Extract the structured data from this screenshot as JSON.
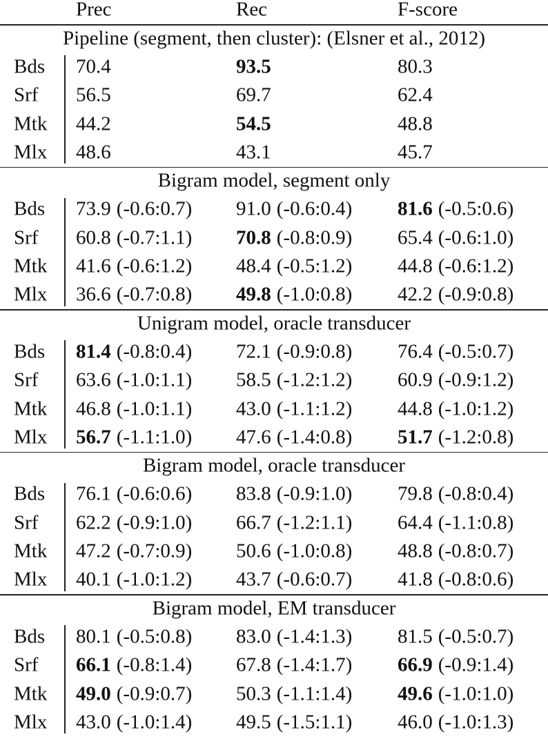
{
  "header": {
    "columns": [
      "Prec",
      "Rec",
      "F-score"
    ]
  },
  "sections": [
    {
      "title": "Pipeline (segment, then cluster): (Elsner et al., 2012)",
      "rows": [
        {
          "label": "Bds",
          "cells": [
            {
              "value": "70.4"
            },
            {
              "value": "93.5",
              "bold": true
            },
            {
              "value": "80.3"
            }
          ]
        },
        {
          "label": "Srf",
          "cells": [
            {
              "value": "56.5"
            },
            {
              "value": "69.7"
            },
            {
              "value": "62.4"
            }
          ]
        },
        {
          "label": "Mtk",
          "cells": [
            {
              "value": "44.2"
            },
            {
              "value": "54.5",
              "bold": true
            },
            {
              "value": "48.8"
            }
          ]
        },
        {
          "label": "Mlx",
          "cells": [
            {
              "value": "48.6"
            },
            {
              "value": "43.1"
            },
            {
              "value": "45.7"
            }
          ]
        }
      ]
    },
    {
      "title": "Bigram model, segment only",
      "rows": [
        {
          "label": "Bds",
          "cells": [
            {
              "value": "73.9",
              "range": "(-0.6:0.7)"
            },
            {
              "value": "91.0",
              "range": "(-0.6:0.4)"
            },
            {
              "value": "81.6",
              "range": "(-0.5:0.6)",
              "bold": true
            }
          ]
        },
        {
          "label": "Srf",
          "cells": [
            {
              "value": "60.8",
              "range": "(-0.7:1.1)"
            },
            {
              "value": "70.8",
              "range": "(-0.8:0.9)",
              "bold": true
            },
            {
              "value": "65.4",
              "range": "(-0.6:1.0)"
            }
          ]
        },
        {
          "label": "Mtk",
          "cells": [
            {
              "value": "41.6",
              "range": "(-0.6:1.2)"
            },
            {
              "value": "48.4",
              "range": "(-0.5:1.2)"
            },
            {
              "value": "44.8",
              "range": "(-0.6:1.2)"
            }
          ]
        },
        {
          "label": "Mlx",
          "cells": [
            {
              "value": "36.6",
              "range": "(-0.7:0.8)"
            },
            {
              "value": "49.8",
              "range": "(-1.0:0.8)",
              "bold": true
            },
            {
              "value": "42.2",
              "range": "(-0.9:0.8)"
            }
          ]
        }
      ]
    },
    {
      "title": "Unigram model, oracle transducer",
      "rows": [
        {
          "label": "Bds",
          "cells": [
            {
              "value": "81.4",
              "range": "(-0.8:0.4)",
              "bold": true
            },
            {
              "value": "72.1",
              "range": "(-0.9:0.8)"
            },
            {
              "value": "76.4",
              "range": "(-0.5:0.7)"
            }
          ]
        },
        {
          "label": "Srf",
          "cells": [
            {
              "value": "63.6",
              "range": "(-1.0:1.1)"
            },
            {
              "value": "58.5",
              "range": "(-1.2:1.2)"
            },
            {
              "value": "60.9",
              "range": "(-0.9:1.2)"
            }
          ]
        },
        {
          "label": "Mtk",
          "cells": [
            {
              "value": "46.8",
              "range": "(-1.0:1.1)"
            },
            {
              "value": "43.0",
              "range": "(-1.1:1.2)"
            },
            {
              "value": "44.8",
              "range": "(-1.0:1.2)"
            }
          ]
        },
        {
          "label": "Mlx",
          "cells": [
            {
              "value": "56.7",
              "range": "(-1.1:1.0)",
              "bold": true
            },
            {
              "value": "47.6",
              "range": "(-1.4:0.8)"
            },
            {
              "value": "51.7",
              "range": "(-1.2:0.8)",
              "bold": true
            }
          ]
        }
      ]
    },
    {
      "title": "Bigram model, oracle transducer",
      "rows": [
        {
          "label": "Bds",
          "cells": [
            {
              "value": "76.1",
              "range": "(-0.6:0.6)"
            },
            {
              "value": "83.8",
              "range": "(-0.9:1.0)"
            },
            {
              "value": "79.8",
              "range": "(-0.8:0.4)"
            }
          ]
        },
        {
          "label": "Srf",
          "cells": [
            {
              "value": "62.2",
              "range": "(-0.9:1.0)"
            },
            {
              "value": "66.7",
              "range": "(-1.2:1.1)"
            },
            {
              "value": "64.4",
              "range": "(-1.1:0.8)"
            }
          ]
        },
        {
          "label": "Mtk",
          "cells": [
            {
              "value": "47.2",
              "range": "(-0.7:0.9)"
            },
            {
              "value": "50.6",
              "range": "(-1.0:0.8)"
            },
            {
              "value": "48.8",
              "range": "(-0.8:0.7)"
            }
          ]
        },
        {
          "label": "Mlx",
          "cells": [
            {
              "value": "40.1",
              "range": "(-1.0:1.2)"
            },
            {
              "value": "43.7",
              "range": "(-0.6:0.7)"
            },
            {
              "value": "41.8",
              "range": "(-0.8:0.6)"
            }
          ]
        }
      ]
    },
    {
      "title": "Bigram model, EM transducer",
      "rows": [
        {
          "label": "Bds",
          "cells": [
            {
              "value": "80.1",
              "range": "(-0.5:0.8)"
            },
            {
              "value": "83.0",
              "range": "(-1.4:1.3)"
            },
            {
              "value": "81.5",
              "range": "(-0.5:0.7)"
            }
          ]
        },
        {
          "label": "Srf",
          "cells": [
            {
              "value": "66.1",
              "range": "(-0.8:1.4)",
              "bold": true
            },
            {
              "value": "67.8",
              "range": "(-1.4:1.7)"
            },
            {
              "value": "66.9",
              "range": "(-0.9:1.4)",
              "bold": true
            }
          ]
        },
        {
          "label": "Mtk",
          "cells": [
            {
              "value": "49.0",
              "range": "(-0.9:0.7)",
              "bold": true
            },
            {
              "value": "50.3",
              "range": "(-1.1:1.4)"
            },
            {
              "value": "49.6",
              "range": "(-1.0:1.0)",
              "bold": true
            }
          ]
        },
        {
          "label": "Mlx",
          "cells": [
            {
              "value": "43.0",
              "range": "(-1.0:1.4)"
            },
            {
              "value": "49.5",
              "range": "(-1.5:1.1)"
            },
            {
              "value": "46.0",
              "range": "(-1.0:1.3)"
            }
          ]
        }
      ]
    }
  ]
}
